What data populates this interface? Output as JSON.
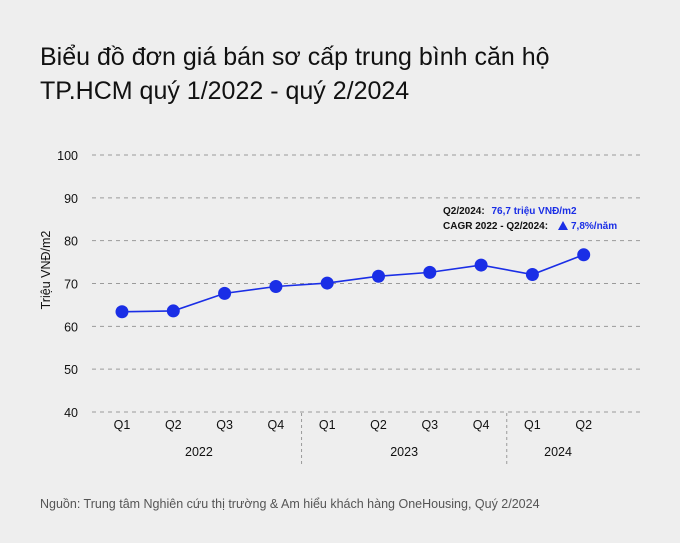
{
  "title_line1": "Biểu đồ đơn giá bán sơ cấp trung bình căn hộ",
  "title_line2": "TP.HCM quý 1/2022 - quý 2/2024",
  "source": "Nguồn: Trung tâm Nghiên cứu thị trường & Am hiểu khách hàng OneHousing, Quý 2/2024",
  "colors": {
    "accent": "#1a2ee6",
    "grid": "#9a9a9a",
    "text": "#111111",
    "background": "#eeeeee"
  },
  "annotation": {
    "line1_label": "Q2/2024:",
    "line1_value": "76,7 triệu VNĐ/m2",
    "line2_label": "CAGR 2022 - Q2/2024:",
    "line2_icon": "triangle-up-icon",
    "line2_value": "7,8%/năm"
  },
  "chart_data": {
    "type": "line",
    "ylabel": "Triệu VNĐ/m2",
    "xlabel": "",
    "ylim": [
      40,
      100
    ],
    "yticks": [
      40,
      50,
      60,
      70,
      80,
      90,
      100
    ],
    "grid": true,
    "categories": [
      "Q1",
      "Q2",
      "Q3",
      "Q4",
      "Q1",
      "Q2",
      "Q3",
      "Q4",
      "Q1",
      "Q2"
    ],
    "year_groups": [
      {
        "label": "2022",
        "count": 4
      },
      {
        "label": "2023",
        "count": 4
      },
      {
        "label": "2024",
        "count": 2
      }
    ],
    "series": [
      {
        "values": [
          63.4,
          63.6,
          67.7,
          69.3,
          70.1,
          71.7,
          72.6,
          74.3,
          72.1,
          76.7
        ]
      }
    ]
  }
}
